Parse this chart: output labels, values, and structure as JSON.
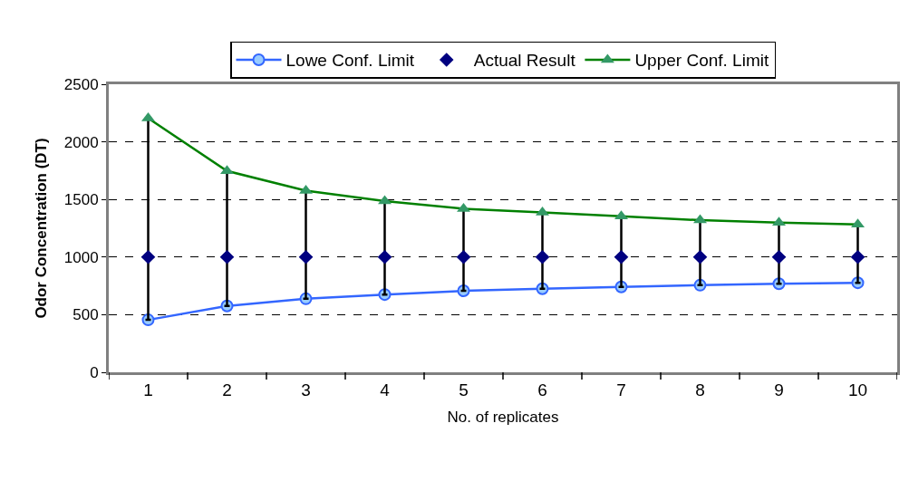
{
  "chart_data": {
    "type": "line",
    "xlabel": "No. of replicates",
    "ylabel": "Odor Concentration (DT)",
    "categories": [
      "1",
      "2",
      "3",
      "4",
      "5",
      "6",
      "7",
      "8",
      "9",
      "10"
    ],
    "series": [
      {
        "name": "Lowe Conf. Limit",
        "color": "#3366ff",
        "marker": "circle",
        "values": [
          455,
          576,
          638,
          675,
          707,
          725,
          741,
          756,
          769,
          777
        ]
      },
      {
        "name": "Actual Result",
        "type": "scatter",
        "color": "#000080",
        "marker": "diamond",
        "values": [
          1000,
          1000,
          1000,
          1000,
          1000,
          1000,
          1000,
          1000,
          1000,
          1000
        ],
        "errors": [
          [
            455,
            2205
          ],
          [
            576,
            1747
          ],
          [
            638,
            1576
          ],
          [
            675,
            1485
          ],
          [
            707,
            1419
          ],
          [
            725,
            1388
          ],
          [
            741,
            1354
          ],
          [
            756,
            1320
          ],
          [
            769,
            1299
          ],
          [
            777,
            1283
          ]
        ]
      },
      {
        "name": "Upper Conf. Limit",
        "color": "#008000",
        "marker": "triangle",
        "values": [
          2205,
          1747,
          1576,
          1485,
          1419,
          1388,
          1354,
          1320,
          1299,
          1283
        ]
      }
    ],
    "ylim": [
      0,
      2500
    ],
    "yticks": [
      0,
      500,
      1000,
      1500,
      2000,
      2500
    ],
    "grid": "y",
    "legend": "top"
  }
}
